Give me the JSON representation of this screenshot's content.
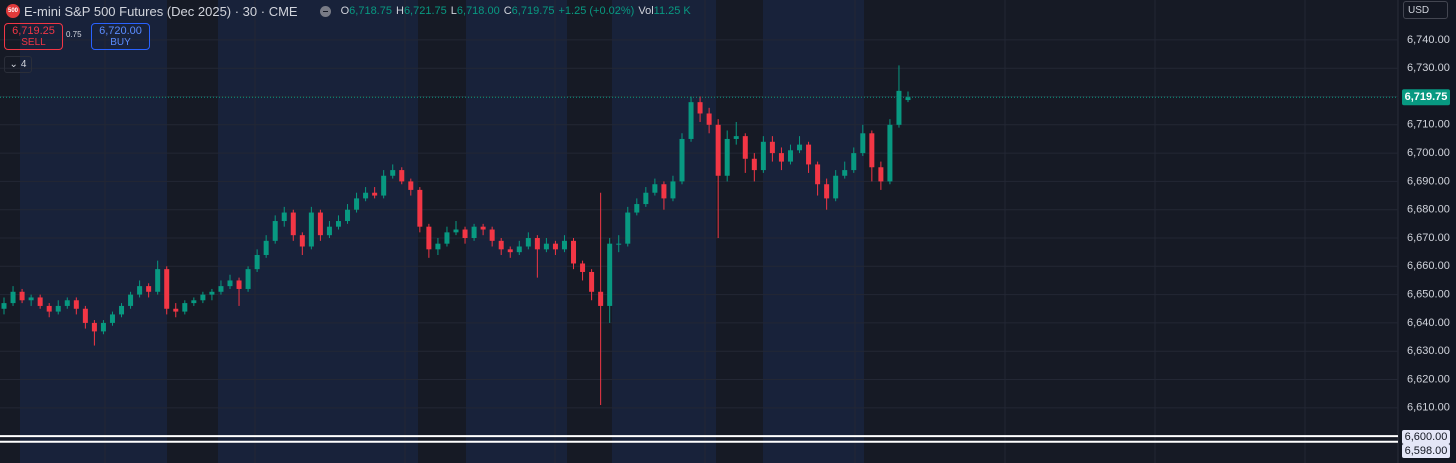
{
  "header": {
    "badge": "500",
    "title": "E-mini S&P 500 Futures (Dec 2025) · 30 · CME",
    "ohlc": [
      {
        "key": "O",
        "value": "6,718.75"
      },
      {
        "key": "H",
        "value": "6,721.75"
      },
      {
        "key": "L",
        "value": "6,718.00"
      },
      {
        "key": "C",
        "value": "6,719.75"
      }
    ],
    "change": "+1.25 (+0.02%)",
    "vol_key": "Vol",
    "vol": "11.25 K"
  },
  "trading": {
    "sell_price": "6,719.25",
    "sell_label": "SELL",
    "spread": "0.75",
    "buy_price": "6,720.00",
    "buy_label": "BUY",
    "indicators": "4",
    "currency": "USD"
  },
  "chart_data": {
    "type": "candlestick",
    "up_color": "#089981",
    "down_color": "#f23645",
    "grid": true,
    "ylim": [
      6590.5,
      6754.1
    ],
    "yticks": [
      {
        "value": 6740,
        "label": "6,740.00"
      },
      {
        "value": 6730,
        "label": "6,730.00"
      },
      {
        "value": 6720,
        "label": "6,720.00"
      },
      {
        "value": 6710,
        "label": "6,710.00"
      },
      {
        "value": 6700,
        "label": "6,700.00"
      },
      {
        "value": 6690,
        "label": "6,690.00"
      },
      {
        "value": 6680,
        "label": "6,680.00"
      },
      {
        "value": 6670,
        "label": "6,670.00"
      },
      {
        "value": 6660,
        "label": "6,660.00"
      },
      {
        "value": 6650,
        "label": "6,650.00"
      },
      {
        "value": 6640,
        "label": "6,640.00"
      },
      {
        "value": 6630,
        "label": "6,630.00"
      },
      {
        "value": 6620,
        "label": "6,620.00"
      },
      {
        "value": 6610,
        "label": "6,610.00"
      }
    ],
    "last_price": {
      "value": 6719.75,
      "label": "6,719.75",
      "color": "#089981"
    },
    "price_lines": [
      {
        "value": 6600,
        "label": "6,600.00"
      },
      {
        "value": 6598,
        "label": "6,598.00"
      }
    ],
    "ohlc": [
      [
        6645,
        6649,
        6643,
        6647
      ],
      [
        6647,
        6653,
        6646,
        6651
      ],
      [
        6651,
        6652,
        6647,
        6648
      ],
      [
        6648,
        6650,
        6646,
        6649
      ],
      [
        6649,
        6650,
        6645,
        6646
      ],
      [
        6646,
        6647,
        6642,
        6644
      ],
      [
        6644,
        6648,
        6643,
        6646
      ],
      [
        6646,
        6649,
        6645,
        6648
      ],
      [
        6648,
        6649,
        6643,
        6645
      ],
      [
        6645,
        6646,
        6638,
        6640
      ],
      [
        6640,
        6641,
        6632,
        6637
      ],
      [
        6637,
        6641,
        6636,
        6640
      ],
      [
        6640,
        6644,
        6639,
        6643
      ],
      [
        6643,
        6647,
        6642,
        6646
      ],
      [
        6646,
        6651,
        6645,
        6650
      ],
      [
        6650,
        6655,
        6649,
        6653
      ],
      [
        6653,
        6654,
        6649,
        6651
      ],
      [
        6651,
        6662,
        6650,
        6659
      ],
      [
        6659,
        6660,
        6643,
        6645
      ],
      [
        6645,
        6647,
        6642,
        6644
      ],
      [
        6644,
        6648,
        6643,
        6647
      ],
      [
        6647,
        6649,
        6646,
        6648
      ],
      [
        6648,
        6651,
        6647,
        6650
      ],
      [
        6650,
        6652,
        6648,
        6651
      ],
      [
        6651,
        6655,
        6650,
        6653
      ],
      [
        6653,
        6657,
        6652,
        6655
      ],
      [
        6655,
        6656,
        6646,
        6652
      ],
      [
        6652,
        6660,
        6651,
        6659
      ],
      [
        6659,
        6666,
        6658,
        6664
      ],
      [
        6664,
        6671,
        6663,
        6669
      ],
      [
        6669,
        6678,
        6668,
        6676
      ],
      [
        6676,
        6681,
        6674,
        6679
      ],
      [
        6679,
        6680,
        6669,
        6671
      ],
      [
        6671,
        6672,
        6664,
        6667
      ],
      [
        6667,
        6681,
        6666,
        6679
      ],
      [
        6679,
        6680,
        6669,
        6671
      ],
      [
        6671,
        6676,
        6670,
        6674
      ],
      [
        6674,
        6678,
        6673,
        6676
      ],
      [
        6676,
        6682,
        6675,
        6680
      ],
      [
        6680,
        6686,
        6679,
        6684
      ],
      [
        6684,
        6688,
        6683,
        6686
      ],
      [
        6686,
        6688,
        6684,
        6685
      ],
      [
        6685,
        6694,
        6684,
        6692
      ],
      [
        6692,
        6696,
        6691,
        6694
      ],
      [
        6694,
        6695,
        6689,
        6690
      ],
      [
        6690,
        6691,
        6685,
        6687
      ],
      [
        6687,
        6688,
        6672,
        6674
      ],
      [
        6674,
        6675,
        6663,
        6666
      ],
      [
        6666,
        6670,
        6664,
        6668
      ],
      [
        6668,
        6674,
        6667,
        6672
      ],
      [
        6672,
        6676,
        6671,
        6673
      ],
      [
        6673,
        6674,
        6668,
        6670
      ],
      [
        6670,
        6675,
        6669,
        6674
      ],
      [
        6674,
        6675,
        6671,
        6673
      ],
      [
        6673,
        6674,
        6667,
        6669
      ],
      [
        6669,
        6670,
        6664,
        6666
      ],
      [
        6666,
        6667,
        6663,
        6665
      ],
      [
        6665,
        6669,
        6664,
        6667
      ],
      [
        6667,
        6672,
        6666,
        6670
      ],
      [
        6670,
        6671,
        6656,
        6666
      ],
      [
        6666,
        6670,
        6665,
        6668
      ],
      [
        6668,
        6669,
        6664,
        6666
      ],
      [
        6666,
        6671,
        6665,
        6669
      ],
      [
        6669,
        6670,
        6659,
        6661
      ],
      [
        6661,
        6662,
        6655,
        6658
      ],
      [
        6658,
        6659,
        6648,
        6651
      ],
      [
        6651,
        6686,
        6611,
        6646
      ],
      [
        6646,
        6670,
        6640,
        6668
      ],
      [
        6668,
        6671,
        6665,
        6668
      ],
      [
        6668,
        6681,
        6667,
        6679
      ],
      [
        6679,
        6684,
        6678,
        6682
      ],
      [
        6682,
        6688,
        6681,
        6686
      ],
      [
        6686,
        6691,
        6685,
        6689
      ],
      [
        6689,
        6690,
        6680,
        6684
      ],
      [
        6684,
        6692,
        6683,
        6690
      ],
      [
        6690,
        6707,
        6689,
        6705
      ],
      [
        6705,
        6720,
        6704,
        6718
      ],
      [
        6718,
        6720,
        6711,
        6714
      ],
      [
        6714,
        6716,
        6707,
        6710
      ],
      [
        6710,
        6712,
        6670,
        6692
      ],
      [
        6692,
        6708,
        6690,
        6705
      ],
      [
        6705,
        6711,
        6703,
        6706
      ],
      [
        6706,
        6707,
        6693,
        6698
      ],
      [
        6698,
        6700,
        6690,
        6694
      ],
      [
        6694,
        6706,
        6693,
        6704
      ],
      [
        6704,
        6706,
        6697,
        6700
      ],
      [
        6700,
        6702,
        6694,
        6697
      ],
      [
        6697,
        6703,
        6696,
        6701
      ],
      [
        6701,
        6706,
        6700,
        6703
      ],
      [
        6703,
        6704,
        6693,
        6696
      ],
      [
        6696,
        6697,
        6685,
        6689
      ],
      [
        6689,
        6691,
        6680,
        6684
      ],
      [
        6684,
        6694,
        6683,
        6692
      ],
      [
        6692,
        6697,
        6691,
        6694
      ],
      [
        6694,
        6702,
        6693,
        6700
      ],
      [
        6700,
        6710,
        6699,
        6707
      ],
      [
        6707,
        6708,
        6690,
        6695
      ],
      [
        6695,
        6697,
        6687,
        6690
      ],
      [
        6690,
        6712,
        6689,
        6710
      ],
      [
        6710,
        6731,
        6709,
        6722
      ],
      [
        6718.75,
        6721.75,
        6718,
        6719.75
      ]
    ]
  }
}
